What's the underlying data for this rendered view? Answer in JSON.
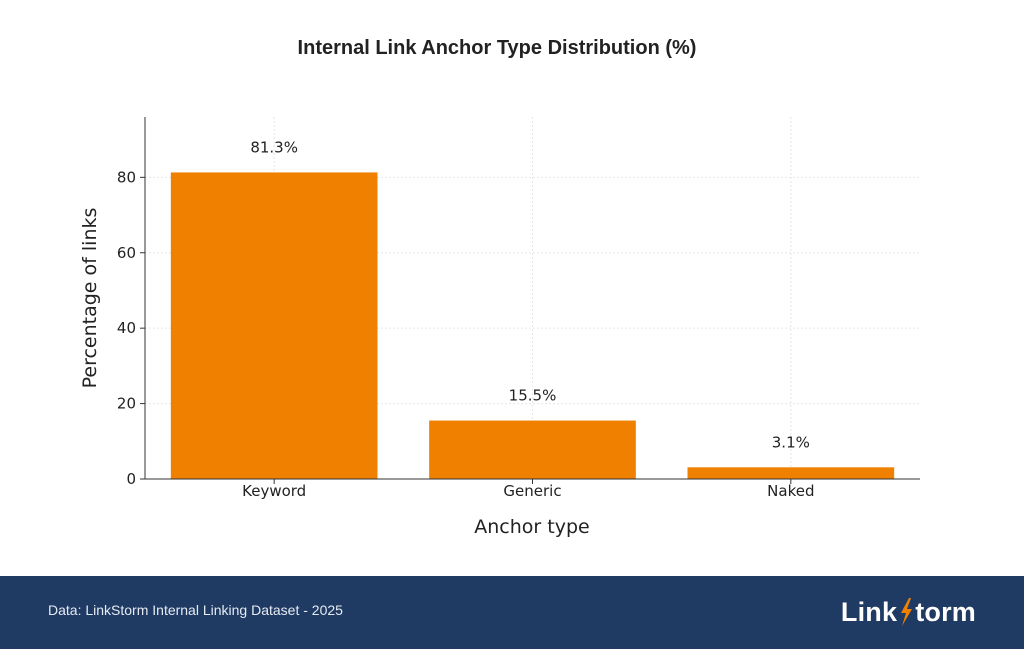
{
  "chart_data": {
    "type": "bar",
    "title": "Internal Link Anchor Type Distribution (%)",
    "xlabel": "Anchor type",
    "ylabel": "Percentage of links",
    "categories": [
      "Keyword",
      "Generic",
      "Naked"
    ],
    "values": [
      81.3,
      15.5,
      3.1
    ],
    "data_labels": [
      "81.3%",
      "15.5%",
      "3.1%"
    ],
    "ylim": [
      0,
      96
    ],
    "yticks": [
      0,
      20,
      40,
      60,
      80
    ],
    "grid": true,
    "legend": "none",
    "bar_color": "#f08000"
  },
  "footer": {
    "source": "Data: LinkStorm Internal Linking Dataset - 2025",
    "brand_left": "Link",
    "brand_right": "torm",
    "background": "#1f3a63",
    "bolt_color": "#f08000"
  }
}
